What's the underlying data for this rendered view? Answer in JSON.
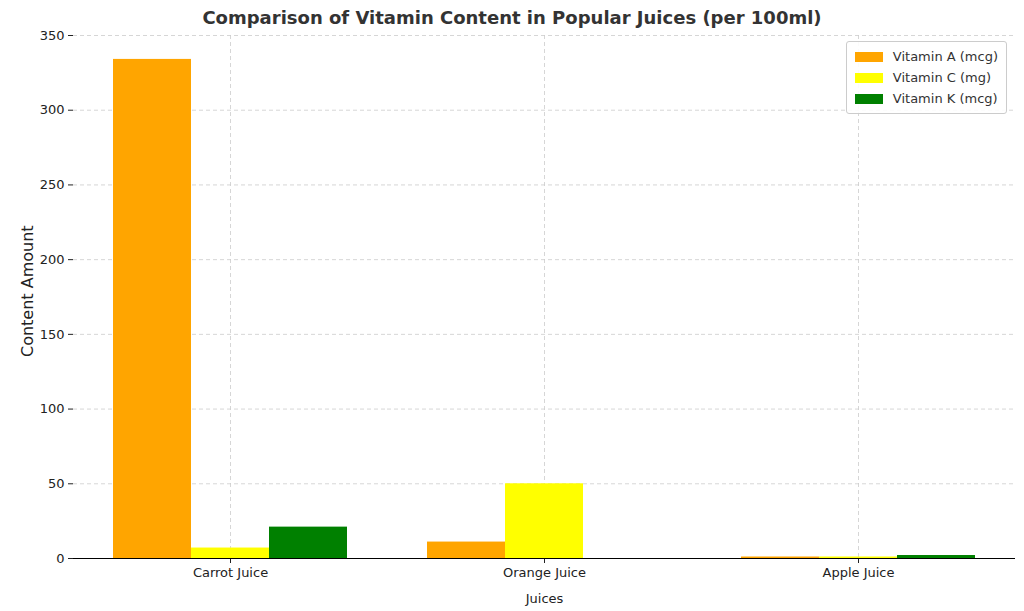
{
  "chart_data": {
    "type": "bar",
    "title": "Comparison of Vitamin Content in Popular Juices (per 100ml)",
    "x_label": "Juices",
    "y_label": "Content Amount",
    "categories": [
      "Carrot Juice",
      "Orange Juice",
      "Apple Juice"
    ],
    "series": [
      {
        "name": "Vitamin A (mcg)",
        "color": "#ffa500",
        "values": [
          334,
          11,
          1
        ]
      },
      {
        "name": "Vitamin C (mg)",
        "color": "#ffff00",
        "values": [
          7,
          50,
          1
        ]
      },
      {
        "name": "Vitamin K (mcg)",
        "color": "#008000",
        "values": [
          21,
          0,
          2
        ]
      }
    ],
    "ylim": [
      0,
      350
    ],
    "yticks": [
      0,
      50,
      100,
      150,
      200,
      250,
      300,
      350
    ],
    "grid": true,
    "legend": "upper right"
  }
}
